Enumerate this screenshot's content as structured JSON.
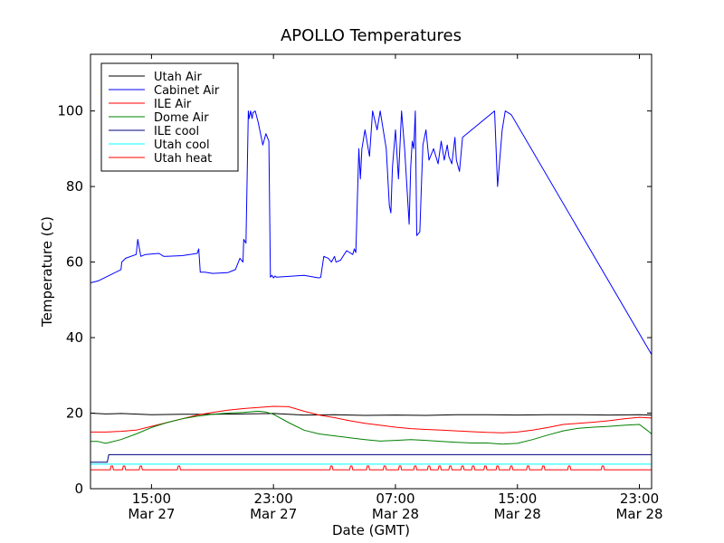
{
  "chart_data": {
    "type": "line",
    "title": "APOLLO Temperatures",
    "xlabel": "Date (GMT)",
    "ylabel": "Temperature (C)",
    "x_unit": "hours since Mar 27 11:00 GMT",
    "xlim": [
      0,
      36.8
    ],
    "ylim": [
      0,
      115
    ],
    "yticks": [
      0,
      20,
      40,
      60,
      80,
      100
    ],
    "yticklabels": [
      "0",
      "20",
      "40",
      "60",
      "80",
      "100"
    ],
    "xticks": [
      {
        "x": 4,
        "time": "15:00",
        "date": "Mar 27"
      },
      {
        "x": 12,
        "time": "23:00",
        "date": "Mar 27"
      },
      {
        "x": 20,
        "time": "07:00",
        "date": "Mar 28"
      },
      {
        "x": 28,
        "time": "15:00",
        "date": "Mar 28"
      },
      {
        "x": 36,
        "time": "23:00",
        "date": "Mar 28"
      }
    ],
    "grid": false,
    "legend_position": "top-left",
    "series": [
      {
        "name": "Utah Air",
        "color": "#000000",
        "x": [
          0,
          1,
          2,
          4,
          6,
          8,
          10,
          12,
          14,
          16,
          18,
          20,
          22,
          24,
          26,
          28,
          30,
          32,
          34,
          36,
          36.8
        ],
        "y": [
          20,
          19.8,
          19.9,
          19.6,
          19.7,
          19.7,
          19.8,
          19.9,
          19.5,
          19.6,
          19.4,
          19.5,
          19.4,
          19.6,
          19.6,
          19.5,
          19.6,
          19.6,
          19.5,
          19.6,
          19.5
        ]
      },
      {
        "name": "Cabinet Air",
        "color": "#0000ff",
        "x": [
          0,
          0.5,
          1,
          1.5,
          2,
          2.05,
          2.3,
          3,
          3.1,
          3.3,
          3.6,
          4.5,
          4.8,
          5,
          6,
          7,
          7.1,
          7.2,
          7.5,
          8,
          9,
          9.5,
          9.8,
          10,
          10.05,
          10.2,
          10.35,
          10.4,
          10.5,
          10.6,
          10.65,
          10.8,
          11,
          11.3,
          11.5,
          11.7,
          11.8,
          11.9,
          12,
          12.1,
          12.2,
          13,
          14,
          15,
          15.1,
          15.3,
          15.6,
          15.8,
          16,
          16.1,
          16.4,
          16.8,
          17.2,
          17.3,
          17.4,
          17.6,
          17.7,
          17.8,
          18,
          18.3,
          18.5,
          18.8,
          19,
          19.4,
          19.6,
          19.7,
          19.8,
          20,
          20.2,
          20.4,
          20.6,
          20.9,
          21,
          21.1,
          21.2,
          21.3,
          21.4,
          21.6,
          21.7,
          21.8,
          22,
          22.2,
          22.5,
          22.8,
          23,
          23.2,
          23.4,
          23.5,
          23.7,
          23.9,
          24,
          24.2,
          24.4,
          26.5,
          26.7,
          27,
          27.2,
          27.6,
          36.8
        ],
        "y": [
          54.5,
          55,
          56,
          57,
          58,
          60,
          61,
          62,
          66,
          61.5,
          62,
          62.3,
          61.5,
          61.5,
          61.7,
          62.3,
          63.5,
          57.3,
          57.3,
          57,
          57.2,
          58,
          61,
          60,
          66,
          65,
          100,
          98,
          100,
          98,
          99.5,
          100,
          97,
          91,
          94,
          92,
          56,
          56.5,
          55.8,
          56.3,
          56,
          56.2,
          56.5,
          55.8,
          56,
          61.5,
          61,
          60,
          61.5,
          60,
          60.5,
          63,
          62,
          63.5,
          62.5,
          90,
          82,
          90,
          95,
          88,
          100,
          95,
          100,
          90,
          75,
          73,
          85,
          95,
          82,
          100,
          90,
          70,
          85,
          92,
          90,
          100,
          67,
          68,
          80,
          91,
          95,
          87,
          90,
          86,
          92,
          87,
          91,
          88,
          86,
          93,
          87,
          84,
          93,
          100,
          80,
          95,
          100,
          99,
          35.5
        ]
      },
      {
        "name": "ILE Air",
        "color": "#ff0000",
        "x": [
          0,
          1,
          2,
          3,
          4,
          5,
          6,
          7,
          8,
          9,
          10,
          11,
          12,
          13,
          14,
          15,
          16,
          17,
          18,
          19,
          20,
          21,
          22,
          23,
          24,
          25,
          26,
          27,
          28,
          29,
          30,
          31,
          32,
          33,
          34,
          35,
          36,
          36.8
        ],
        "y": [
          15,
          15,
          15.2,
          15.5,
          16.5,
          17.5,
          18.5,
          19.5,
          20.2,
          20.8,
          21.2,
          21.5,
          21.8,
          21.7,
          20.5,
          19.5,
          18.8,
          18,
          17.3,
          16.8,
          16.3,
          15.9,
          15.7,
          15.5,
          15.3,
          15.1,
          14.9,
          14.8,
          15,
          15.5,
          16.2,
          17,
          17.3,
          17.6,
          18,
          18.5,
          18.9,
          18.7
        ]
      },
      {
        "name": "Dome Air",
        "color": "#008000",
        "x": [
          0,
          0.5,
          1,
          2,
          3,
          4,
          5,
          6,
          7,
          8,
          9,
          10,
          11,
          11.5,
          12,
          13,
          14,
          15,
          16,
          17,
          18,
          19,
          20,
          21,
          22,
          23,
          24,
          25,
          26,
          27,
          28,
          29,
          30,
          31,
          32,
          33,
          34,
          35,
          36,
          36.5,
          36.8
        ],
        "y": [
          12.5,
          12.5,
          12,
          13,
          14.5,
          16.2,
          17.5,
          18.5,
          19.2,
          19.7,
          20,
          20.2,
          20.5,
          20.3,
          19.7,
          17.5,
          15.5,
          14.5,
          14,
          13.5,
          13,
          12.6,
          12.8,
          13,
          12.8,
          12.5,
          12.3,
          12.1,
          12.1,
          11.8,
          12,
          13,
          14.2,
          15.3,
          16,
          16.3,
          16.5,
          16.8,
          17,
          15.5,
          14.5
        ]
      },
      {
        "name": "ILE cool",
        "color": "#000080",
        "x": [
          0,
          1.1,
          1.2,
          36.8
        ],
        "y": [
          7,
          7,
          9,
          9
        ]
      },
      {
        "name": "Utah cool",
        "color": "#00ffff",
        "x": [
          0,
          36.8
        ],
        "y": [
          6.5,
          6.5
        ]
      },
      {
        "name": "Utah heat",
        "color": "#ff0000",
        "x": [
          0,
          1.3,
          1.35,
          1.45,
          1.5,
          2.1,
          2.15,
          2.25,
          2.3,
          3.2,
          3.25,
          3.35,
          3.4,
          5.7,
          5.75,
          5.85,
          5.9,
          15.7,
          15.75,
          15.85,
          15.9,
          17,
          17.05,
          17.15,
          17.2,
          18.1,
          18.15,
          18.25,
          18.3,
          19.2,
          19.25,
          19.35,
          19.4,
          20.2,
          20.25,
          20.35,
          20.4,
          21.2,
          21.25,
          21.35,
          21.4,
          22.1,
          22.15,
          22.25,
          22.3,
          22.8,
          22.85,
          22.95,
          23,
          23.5,
          23.55,
          23.65,
          23.7,
          24.3,
          24.35,
          24.45,
          24.5,
          25,
          25.05,
          25.15,
          25.2,
          25.8,
          25.85,
          25.95,
          26,
          26.6,
          26.65,
          26.75,
          26.8,
          27.5,
          27.55,
          27.65,
          27.7,
          28.6,
          28.65,
          28.75,
          28.8,
          29.6,
          29.65,
          29.75,
          29.8,
          31.3,
          31.35,
          31.45,
          31.5,
          33.5,
          33.55,
          33.65,
          33.7,
          36.8
        ],
        "y": [
          5,
          5,
          6,
          6,
          5,
          5,
          6,
          6,
          5,
          5,
          6,
          6,
          5,
          5,
          6,
          6,
          5,
          5,
          6,
          6,
          5,
          5,
          6,
          6,
          5,
          5,
          6,
          6,
          5,
          5,
          6,
          6,
          5,
          5,
          6,
          6,
          5,
          5,
          6,
          6,
          5,
          5,
          6,
          6,
          5,
          5,
          6,
          6,
          5,
          5,
          6,
          6,
          5,
          5,
          6,
          6,
          5,
          5,
          6,
          6,
          5,
          5,
          6,
          6,
          5,
          5,
          6,
          6,
          5,
          5,
          6,
          6,
          5,
          5,
          6,
          6,
          5,
          5,
          6,
          6,
          5,
          5,
          6,
          6,
          5,
          5,
          6,
          6,
          5,
          5
        ]
      }
    ]
  }
}
